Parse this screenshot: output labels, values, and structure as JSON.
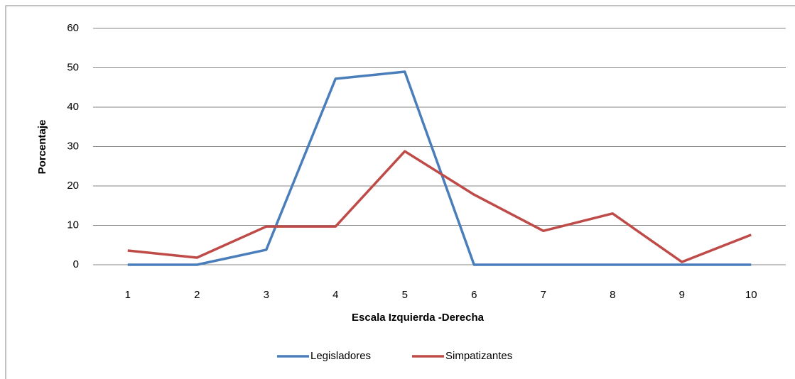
{
  "chart_data": {
    "type": "line",
    "x_label": "Escala Izquierda -Derecha",
    "y_label": "Porcentaje",
    "categories": [
      "1",
      "2",
      "3",
      "4",
      "5",
      "6",
      "7",
      "8",
      "9",
      "10"
    ],
    "series": [
      {
        "name": "Legisladores",
        "color": "#4a7ebb",
        "values": [
          0,
          0,
          3.8,
          47.2,
          49,
          0,
          0,
          0,
          0,
          0
        ]
      },
      {
        "name": "Simpatizantes",
        "color": "#be4b48",
        "values": [
          3.6,
          1.8,
          9.7,
          9.7,
          28.8,
          17.8,
          8.6,
          13,
          0.7,
          7.6
        ]
      }
    ],
    "ylim": [
      0,
      60
    ],
    "yticks": [
      0,
      10,
      20,
      30,
      40,
      50,
      60
    ],
    "grid": true,
    "legend": "bottom"
  }
}
